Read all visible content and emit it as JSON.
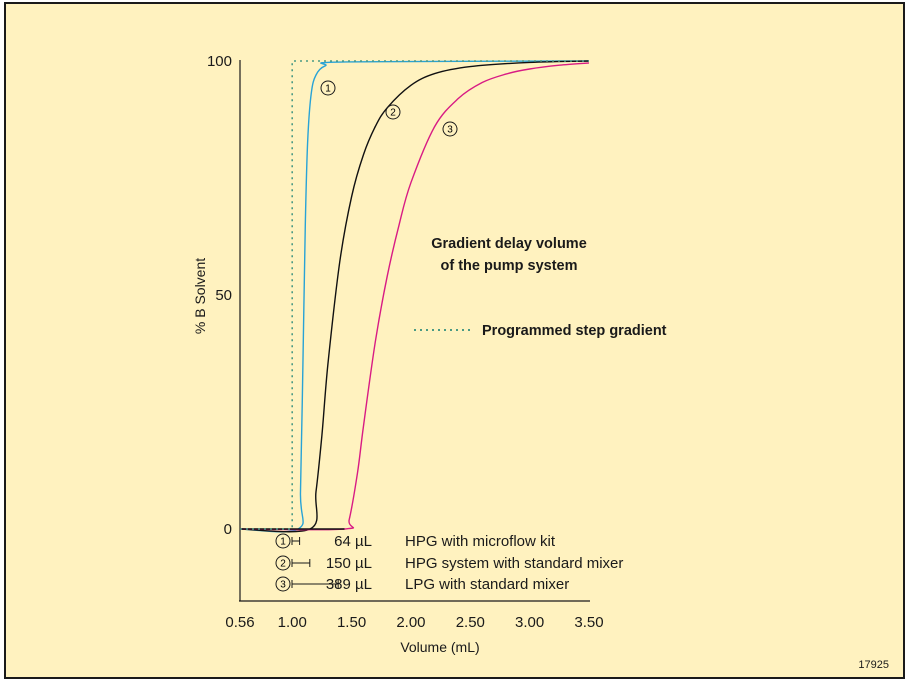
{
  "chart_data": {
    "type": "line",
    "xlabel": "Volume (mL)",
    "ylabel": "% B Solvent",
    "xlim": [
      0.56,
      3.5
    ],
    "ylim": [
      0,
      100
    ],
    "xticks": [
      {
        "value": 0.56,
        "label": "0.56"
      },
      {
        "value": 1.0,
        "label": "1.00"
      },
      {
        "value": 1.5,
        "label": "1.50"
      },
      {
        "value": 2.0,
        "label": "2.00"
      },
      {
        "value": 2.5,
        "label": "2.50"
      },
      {
        "value": 3.0,
        "label": "3.00"
      },
      {
        "value": 3.5,
        "label": "3.50"
      }
    ],
    "yticks": [
      {
        "value": 0,
        "label": "0"
      },
      {
        "value": 50,
        "label": "50"
      },
      {
        "value": 100,
        "label": "100"
      }
    ],
    "grid": false,
    "step": {
      "name": "Programmed step gradient",
      "color": "#4A9A84",
      "points": [
        [
          0.56,
          0
        ],
        [
          1.0,
          0
        ],
        [
          1.0,
          100
        ],
        [
          3.5,
          100
        ]
      ]
    },
    "series": [
      {
        "marker": "1",
        "color": "#29A3D6",
        "points": [
          [
            0.56,
            0
          ],
          [
            1.05,
            0
          ],
          [
            1.07,
            8
          ],
          [
            1.09,
            35
          ],
          [
            1.11,
            65
          ],
          [
            1.13,
            83
          ],
          [
            1.16,
            93
          ],
          [
            1.2,
            97
          ],
          [
            1.28,
            99
          ],
          [
            1.45,
            99.8
          ],
          [
            3.5,
            100
          ]
        ]
      },
      {
        "marker": "2",
        "color": "#111111",
        "points": [
          [
            0.56,
            0
          ],
          [
            1.15,
            0
          ],
          [
            1.2,
            8
          ],
          [
            1.25,
            20
          ],
          [
            1.3,
            35
          ],
          [
            1.4,
            57
          ],
          [
            1.5,
            71
          ],
          [
            1.6,
            80
          ],
          [
            1.7,
            86
          ],
          [
            1.8,
            90
          ],
          [
            2.0,
            94.8
          ],
          [
            2.2,
            97.3
          ],
          [
            2.5,
            98.8
          ],
          [
            3.0,
            99.7
          ],
          [
            3.5,
            100
          ]
        ]
      },
      {
        "marker": "3",
        "color": "#D81B84",
        "points": [
          [
            0.56,
            0
          ],
          [
            1.44,
            0
          ],
          [
            1.48,
            2
          ],
          [
            1.55,
            12
          ],
          [
            1.6,
            22
          ],
          [
            1.7,
            40
          ],
          [
            1.8,
            54
          ],
          [
            1.9,
            65
          ],
          [
            2.0,
            74
          ],
          [
            2.2,
            86
          ],
          [
            2.4,
            92
          ],
          [
            2.6,
            95.4
          ],
          [
            2.8,
            97.2
          ],
          [
            3.0,
            98.3
          ],
          [
            3.25,
            99.1
          ],
          [
            3.5,
            99.6
          ]
        ]
      }
    ],
    "annotations": {
      "title_line1": "Gradient delay volume",
      "title_line2": "of the pump system",
      "step_legend": "Programmed step gradient"
    },
    "delay_legend": [
      {
        "marker": "1",
        "volume": "64 µL",
        "description": "HPG with microflow kit",
        "bar_ml": 0.064
      },
      {
        "marker": "2",
        "volume": "150 µL",
        "description": "HPG system with standard mixer",
        "bar_ml": 0.15
      },
      {
        "marker": "3",
        "volume": "389 µL",
        "description": "LPG with standard mixer",
        "bar_ml": 0.389
      }
    ],
    "figure_id": "17925"
  }
}
